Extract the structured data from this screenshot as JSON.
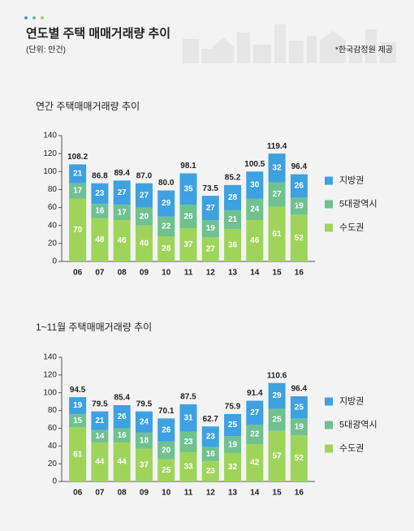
{
  "header": {
    "title": "연도별 주택 매매거래량 추이",
    "unit": "(단위: 만건)",
    "source": "*한국감정원 제공"
  },
  "chart_data": [
    {
      "type": "bar",
      "stacked": true,
      "title": "연간 주택매매거래량 추이",
      "categories": [
        "06",
        "07",
        "08",
        "09",
        "10",
        "11",
        "12",
        "13",
        "14",
        "15",
        "16"
      ],
      "series": [
        {
          "name": "수도권",
          "color": "#9fd45b",
          "values": [
            70,
            48,
            46,
            40,
            28,
            37,
            27,
            36,
            46,
            61,
            52
          ]
        },
        {
          "name": "5대광역시",
          "color": "#6fc190",
          "values": [
            17,
            16,
            17,
            20,
            22,
            26,
            19,
            21,
            24,
            27,
            19
          ]
        },
        {
          "name": "지방권",
          "color": "#3ea1e0",
          "values": [
            21,
            23,
            27,
            27,
            29,
            35,
            27,
            28,
            30,
            32,
            26
          ]
        }
      ],
      "totals": {
        "values": [
          108.2,
          86.8,
          89.4,
          87.0,
          80.0,
          98.1,
          73.5,
          85.2,
          100.5,
          119.4,
          96.4
        ],
        "value_labels": [
          "108.2",
          "86.8",
          "89.4",
          "87.0",
          "80.0",
          "98.1",
          "73.5",
          "85.2",
          "100.5",
          "119.4",
          "96.4"
        ]
      },
      "ylim": [
        0,
        140
      ],
      "yticks": [
        0,
        20,
        40,
        60,
        80,
        100,
        120,
        140
      ],
      "legend": "right"
    },
    {
      "type": "bar",
      "stacked": true,
      "title": "1~11월 주택매매거래량 추이",
      "categories": [
        "06",
        "07",
        "08",
        "09",
        "10",
        "11",
        "12",
        "13",
        "14",
        "15",
        "16"
      ],
      "series": [
        {
          "name": "수도권",
          "color": "#9fd45b",
          "values": [
            61,
            44,
            44,
            37,
            25,
            33,
            23,
            32,
            42,
            57,
            52
          ]
        },
        {
          "name": "5대광역시",
          "color": "#6fc190",
          "values": [
            15,
            14,
            16,
            18,
            20,
            23,
            16,
            19,
            22,
            25,
            19
          ]
        },
        {
          "name": "지방권",
          "color": "#3ea1e0",
          "values": [
            19,
            21,
            26,
            24,
            26,
            31,
            23,
            25,
            27,
            29,
            25
          ]
        }
      ],
      "totals": {
        "values": [
          94.5,
          79.5,
          85.4,
          79.5,
          70.1,
          87.5,
          62.7,
          75.9,
          91.4,
          110.6,
          96.4
        ],
        "value_labels": [
          "94.5",
          "79.5",
          "85.4",
          "79.5",
          "70.1",
          "87.5",
          "62.7",
          "75.9",
          "91.4",
          "110.6",
          "96.4"
        ]
      },
      "ylim": [
        0,
        140
      ],
      "yticks": [
        0,
        20,
        40,
        60,
        80,
        100,
        120,
        140
      ],
      "legend": "right"
    }
  ]
}
